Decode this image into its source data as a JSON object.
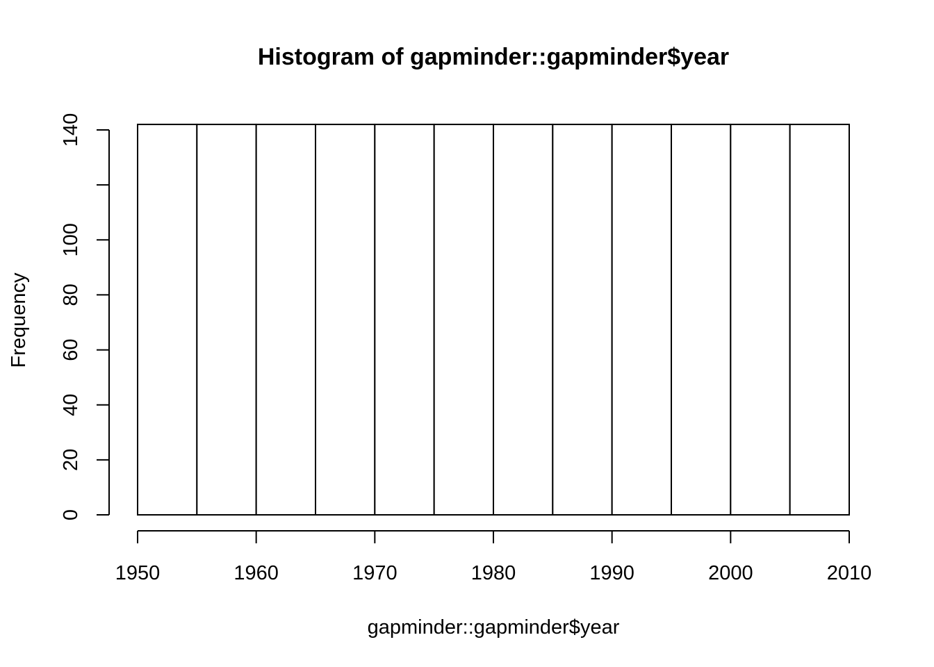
{
  "chart_data": {
    "type": "bar",
    "title": "Histogram of gapminder::gapminder$year",
    "xlabel": "gapminder::gapminder$year",
    "ylabel": "Frequency",
    "bin_edges": [
      1950,
      1955,
      1960,
      1965,
      1970,
      1975,
      1980,
      1985,
      1990,
      1995,
      2000,
      2005,
      2010
    ],
    "values": [
      142,
      142,
      142,
      142,
      142,
      142,
      142,
      142,
      142,
      142,
      142,
      142
    ],
    "xlim": [
      1950,
      2010
    ],
    "ylim": [
      0,
      142
    ],
    "x_ticks": [
      1950,
      1960,
      1970,
      1980,
      1990,
      2000,
      2010
    ],
    "x_tick_labels": [
      "1950",
      "1960",
      "1970",
      "1980",
      "1990",
      "2000",
      "2010"
    ],
    "y_ticks": [
      0,
      20,
      40,
      60,
      80,
      100,
      120,
      140
    ],
    "y_tick_labels": [
      "0",
      "20",
      "40",
      "60",
      "80",
      "100",
      "",
      "140"
    ],
    "colors": {
      "bar_fill": "#ffffff",
      "bar_stroke": "#000000"
    },
    "grid": false,
    "legend": "none"
  }
}
